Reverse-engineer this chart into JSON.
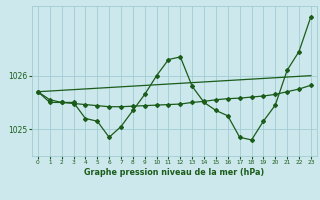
{
  "title": "Graphe pression niveau de la mer (hPa)",
  "background_color": "#cde8ec",
  "grid_color": "#a0cdd4",
  "line_color": "#1a5c1a",
  "xlim": [
    -0.5,
    23.5
  ],
  "ylim": [
    1024.5,
    1027.3
  ],
  "yticks": [
    1025,
    1026
  ],
  "ytick_labels": [
    "1025",
    "1026"
  ],
  "xticks": [
    0,
    1,
    2,
    3,
    4,
    5,
    6,
    7,
    8,
    9,
    10,
    11,
    12,
    13,
    14,
    15,
    16,
    17,
    18,
    19,
    20,
    21,
    22,
    23
  ],
  "series_zigzag": [
    1025.7,
    1025.5,
    1025.5,
    1025.5,
    1025.2,
    1025.15,
    1024.85,
    1025.05,
    1025.35,
    1025.65,
    1026.0,
    1026.3,
    1026.35,
    1025.8,
    1025.5,
    1025.35,
    1025.25,
    1024.85,
    1024.8,
    1025.15,
    1025.45,
    1026.1,
    1026.45,
    1027.1
  ],
  "series_flat": [
    1025.7,
    1025.55,
    1025.5,
    1025.48,
    1025.46,
    1025.44,
    1025.42,
    1025.42,
    1025.43,
    1025.44,
    1025.45,
    1025.46,
    1025.47,
    1025.5,
    1025.52,
    1025.55,
    1025.57,
    1025.58,
    1025.6,
    1025.62,
    1025.65,
    1025.7,
    1025.75,
    1025.82
  ],
  "series_trend_x": [
    0,
    23
  ],
  "series_trend_y": [
    1025.7,
    1026.0
  ],
  "figsize": [
    3.2,
    2.0
  ],
  "dpi": 100
}
